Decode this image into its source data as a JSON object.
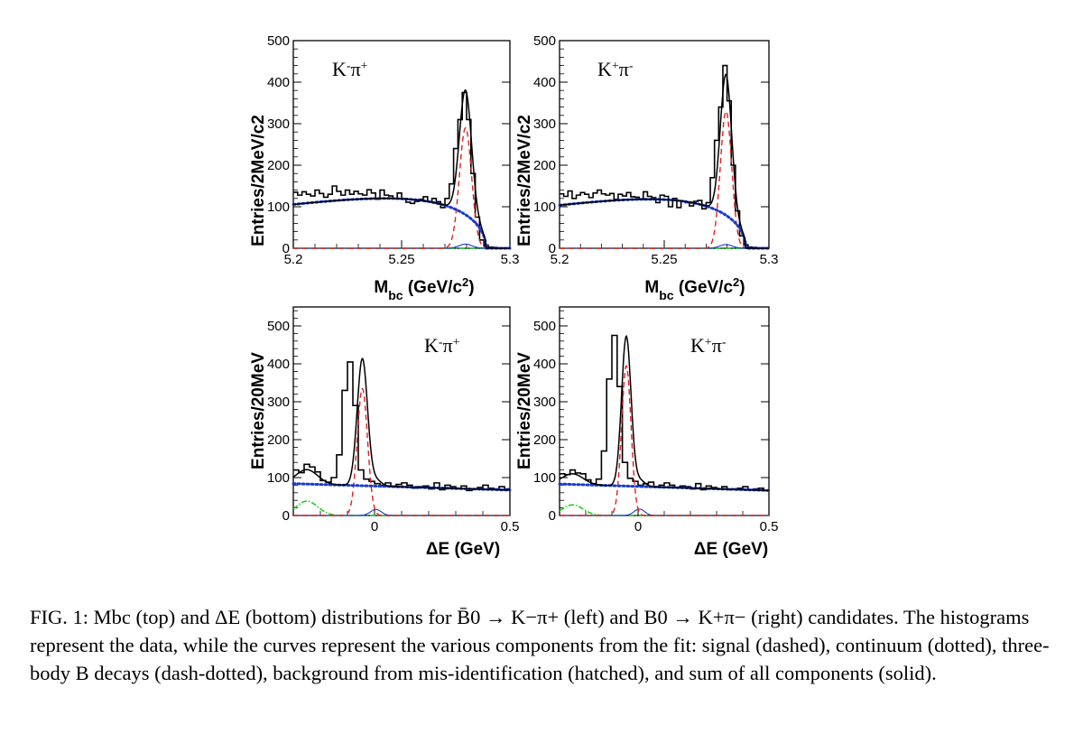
{
  "caption": {
    "label": "FIG. 1:",
    "text": "Mbc (top) and ΔE (bottom) distributions for B̄0 → K−π+ (left) and B0 → K+π− (right) candidates. The histograms represent the data, while the curves represent the various components from the fit: signal (dashed), continuum (dotted), three-body B decays (dash-dotted), background from mis-identification (hatched), and sum of all components (solid)."
  },
  "colors": {
    "data": "#000000",
    "signal": "#e02020",
    "continuum": "#1a3ccc",
    "three_body": "#22cc22",
    "misid": "#1a3ccc",
    "total": "#000000"
  },
  "chart_data": [
    {
      "type": "line",
      "id": "mbc-left",
      "label": "K-π+",
      "xlabel": "Mbc (GeV/c2)",
      "ylabel": "Entries/2MeV/c2",
      "xlim": [
        5.2,
        5.3
      ],
      "ylim": [
        0,
        500
      ],
      "xticks": [
        "5.2",
        "5.25",
        "5.3"
      ],
      "yticks": [
        "0",
        "100",
        "200",
        "300",
        "400",
        "500"
      ],
      "bin_width": 0.002,
      "histogram": [
        135,
        128,
        136,
        130,
        126,
        140,
        132,
        123,
        130,
        150,
        137,
        128,
        140,
        130,
        137,
        131,
        128,
        141,
        133,
        118,
        140,
        128,
        126,
        120,
        133,
        118,
        111,
        108,
        113,
        118,
        124,
        112,
        120,
        112,
        98,
        120,
        155,
        240,
        310,
        375,
        310,
        180,
        75,
        20,
        6,
        3,
        2,
        1,
        1,
        1
      ],
      "signal": {
        "mean": 5.2795,
        "sigma": 0.0028,
        "peak": 290
      },
      "continuum": {
        "endpoint": 5.289,
        "norm": 120,
        "shape": "argus"
      },
      "misid": {
        "mean": 5.2795,
        "sigma": 0.003,
        "peak": 10
      },
      "three_body": {
        "level": 1
      },
      "legend": null
    },
    {
      "type": "line",
      "id": "mbc-right",
      "label": "K+π-",
      "xlabel": "Mbc (GeV/c2)",
      "ylabel": "Entries/2MeV/c2",
      "xlim": [
        5.2,
        5.3
      ],
      "ylim": [
        0,
        500
      ],
      "xticks": [
        "5.2",
        "5.25",
        "5.3"
      ],
      "yticks": [
        "0",
        "100",
        "200",
        "300",
        "400",
        "500"
      ],
      "bin_width": 0.002,
      "histogram": [
        131,
        125,
        138,
        120,
        128,
        134,
        130,
        122,
        133,
        140,
        131,
        128,
        132,
        118,
        130,
        126,
        134,
        124,
        123,
        118,
        136,
        125,
        122,
        110,
        128,
        125,
        100,
        120,
        98,
        113,
        110,
        102,
        113,
        115,
        95,
        110,
        170,
        260,
        340,
        440,
        355,
        200,
        90,
        30,
        8,
        3,
        2,
        1,
        1,
        0
      ],
      "signal": {
        "mean": 5.2795,
        "sigma": 0.0027,
        "peak": 330
      },
      "continuum": {
        "endpoint": 5.289,
        "norm": 118,
        "shape": "argus"
      },
      "misid": {
        "mean": 5.2795,
        "sigma": 0.003,
        "peak": 9
      },
      "three_body": {
        "level": 1
      },
      "legend": null
    },
    {
      "type": "line",
      "id": "de-left",
      "label": "K-π+",
      "xlabel": "ΔE (GeV)",
      "ylabel": "Entries/20MeV",
      "xlim": [
        -0.3,
        0.5
      ],
      "ylim": [
        0,
        550
      ],
      "xticks": [
        "0",
        "0.5"
      ],
      "yticks": [
        "0",
        "100",
        "200",
        "300",
        "400",
        "500"
      ],
      "bin_width": 0.02,
      "histogram": [
        120,
        113,
        135,
        128,
        115,
        92,
        88,
        100,
        160,
        330,
        405,
        290,
        120,
        96,
        90,
        84,
        80,
        86,
        78,
        82,
        86,
        80,
        72,
        76,
        78,
        70,
        86,
        68,
        80,
        76,
        72,
        78,
        66,
        70,
        74,
        80,
        72,
        70,
        76,
        70
      ],
      "signal": {
        "mean": -0.045,
        "sigma": 0.019,
        "peak": 335
      },
      "continuum": {
        "slope": -3e-05,
        "at_min": 84,
        "at_max": 67
      },
      "three_body": {
        "mean": -0.25,
        "sigma": 0.04,
        "peak": 38
      },
      "misid": {
        "mean": 0.005,
        "sigma": 0.02,
        "peak": 16
      },
      "legend": null
    },
    {
      "type": "line",
      "id": "de-right",
      "label": "K+π-",
      "xlabel": "ΔE (GeV)",
      "ylabel": "Entries/20MeV",
      "xlim": [
        -0.3,
        0.5
      ],
      "ylim": [
        0,
        550
      ],
      "xticks": [
        "0",
        "0.5"
      ],
      "yticks": [
        "0",
        "100",
        "200",
        "300",
        "400",
        "500"
      ],
      "bin_width": 0.02,
      "histogram": [
        110,
        108,
        120,
        112,
        110,
        94,
        84,
        96,
        170,
        360,
        475,
        340,
        140,
        98,
        90,
        80,
        84,
        88,
        76,
        80,
        86,
        80,
        74,
        78,
        76,
        70,
        84,
        68,
        78,
        74,
        70,
        76,
        68,
        70,
        72,
        76,
        68,
        70,
        72,
        66
      ],
      "signal": {
        "mean": -0.045,
        "sigma": 0.018,
        "peak": 395
      },
      "continuum": {
        "slope": -3e-05,
        "at_min": 83,
        "at_max": 66
      },
      "three_body": {
        "mean": -0.25,
        "sigma": 0.04,
        "peak": 28
      },
      "misid": {
        "mean": 0.005,
        "sigma": 0.02,
        "peak": 17
      },
      "legend": null
    }
  ]
}
